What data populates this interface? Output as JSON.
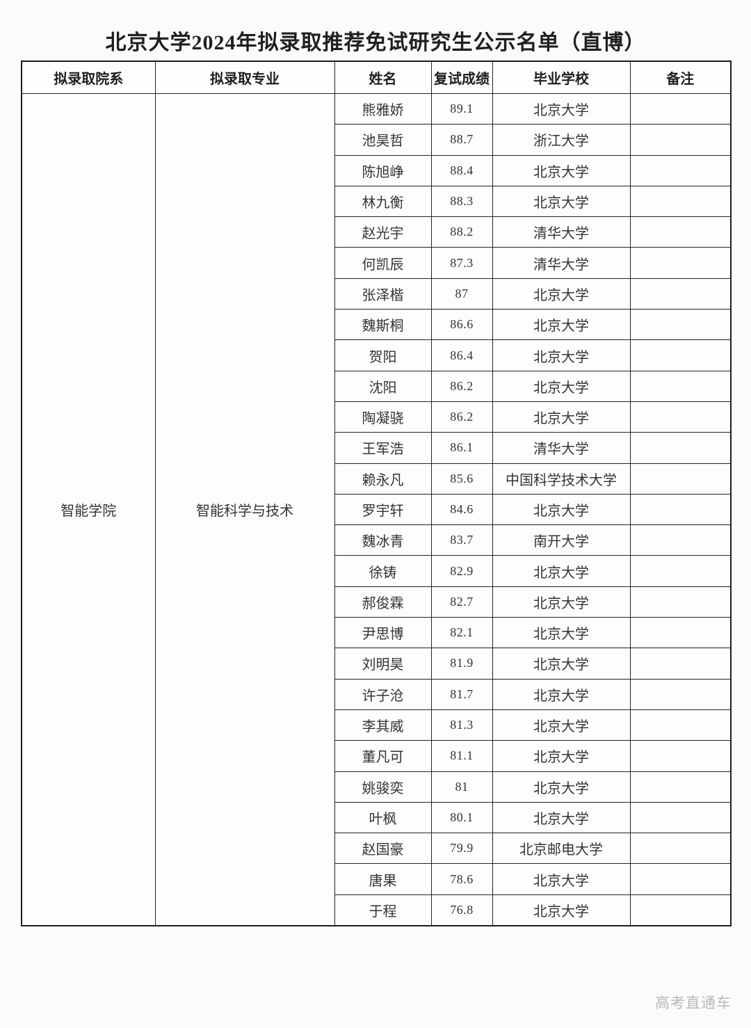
{
  "page": {
    "title": "北京大学2024年拟录取推荐免试研究生公示名单（直博）",
    "watermark": "高考直通车"
  },
  "table": {
    "headers": [
      "拟录取院系",
      "拟录取专业",
      "姓名",
      "复试成绩",
      "毕业学校",
      "备注"
    ],
    "department": "智能学院",
    "major": "智能科学与技术",
    "rows": [
      {
        "name": "熊雅娇",
        "score": "89.1",
        "school": "北京大学",
        "remark": ""
      },
      {
        "name": "池昊哲",
        "score": "88.7",
        "school": "浙江大学",
        "remark": ""
      },
      {
        "name": "陈旭峥",
        "score": "88.4",
        "school": "北京大学",
        "remark": ""
      },
      {
        "name": "林九衡",
        "score": "88.3",
        "school": "北京大学",
        "remark": ""
      },
      {
        "name": "赵光宇",
        "score": "88.2",
        "school": "清华大学",
        "remark": ""
      },
      {
        "name": "何凯辰",
        "score": "87.3",
        "school": "清华大学",
        "remark": ""
      },
      {
        "name": "张泽楷",
        "score": "87",
        "school": "北京大学",
        "remark": ""
      },
      {
        "name": "魏斯桐",
        "score": "86.6",
        "school": "北京大学",
        "remark": ""
      },
      {
        "name": "贺阳",
        "score": "86.4",
        "school": "北京大学",
        "remark": ""
      },
      {
        "name": "沈阳",
        "score": "86.2",
        "school": "北京大学",
        "remark": ""
      },
      {
        "name": "陶凝骁",
        "score": "86.2",
        "school": "北京大学",
        "remark": ""
      },
      {
        "name": "王军浩",
        "score": "86.1",
        "school": "清华大学",
        "remark": ""
      },
      {
        "name": "赖永凡",
        "score": "85.6",
        "school": "中国科学技术大学",
        "remark": ""
      },
      {
        "name": "罗宇轩",
        "score": "84.6",
        "school": "北京大学",
        "remark": ""
      },
      {
        "name": "魏冰青",
        "score": "83.7",
        "school": "南开大学",
        "remark": ""
      },
      {
        "name": "徐铸",
        "score": "82.9",
        "school": "北京大学",
        "remark": ""
      },
      {
        "name": "郝俊霖",
        "score": "82.7",
        "school": "北京大学",
        "remark": ""
      },
      {
        "name": "尹思博",
        "score": "82.1",
        "school": "北京大学",
        "remark": ""
      },
      {
        "name": "刘明昊",
        "score": "81.9",
        "school": "北京大学",
        "remark": ""
      },
      {
        "name": "许子沧",
        "score": "81.7",
        "school": "北京大学",
        "remark": ""
      },
      {
        "name": "李其威",
        "score": "81.3",
        "school": "北京大学",
        "remark": ""
      },
      {
        "name": "董凡可",
        "score": "81.1",
        "school": "北京大学",
        "remark": ""
      },
      {
        "name": "姚骏奕",
        "score": "81",
        "school": "北京大学",
        "remark": ""
      },
      {
        "name": "叶枫",
        "score": "80.1",
        "school": "北京大学",
        "remark": ""
      },
      {
        "name": "赵国豪",
        "score": "79.9",
        "school": "北京邮电大学",
        "remark": ""
      },
      {
        "name": "唐果",
        "score": "78.6",
        "school": "北京大学",
        "remark": ""
      },
      {
        "name": "于程",
        "score": "76.8",
        "school": "北京大学",
        "remark": ""
      }
    ]
  }
}
